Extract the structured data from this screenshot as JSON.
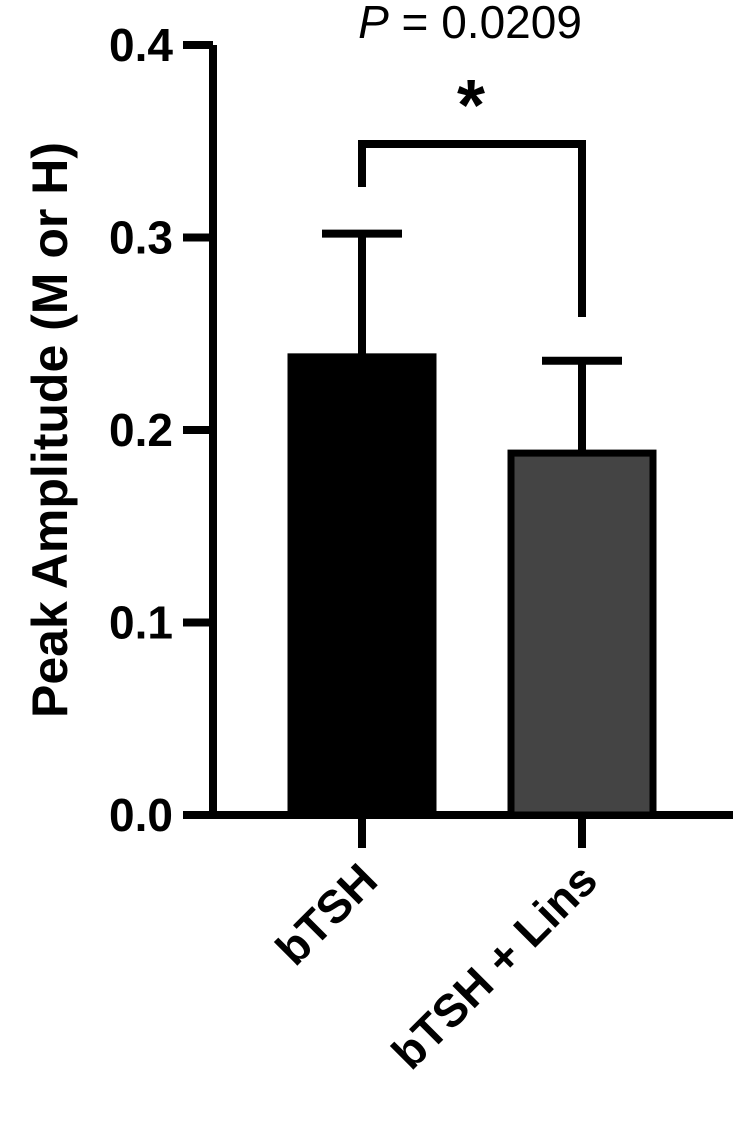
{
  "chart_data": {
    "type": "bar",
    "categories": [
      "bTSH",
      "bTSH + Lins"
    ],
    "values": [
      0.238,
      0.188
    ],
    "errors": [
      0.064,
      0.048
    ],
    "colors": [
      "#000000",
      "#444444"
    ],
    "ylabel": "Peak Amplitude (M or H)",
    "ylim": [
      0,
      0.4
    ],
    "yticks": [
      "0.0",
      "0.1",
      "0.2",
      "0.3",
      "0.4"
    ],
    "grid": false,
    "annotation": {
      "p_prefix": "P",
      "p_rest": " = 0.0209",
      "significance": "*"
    }
  }
}
